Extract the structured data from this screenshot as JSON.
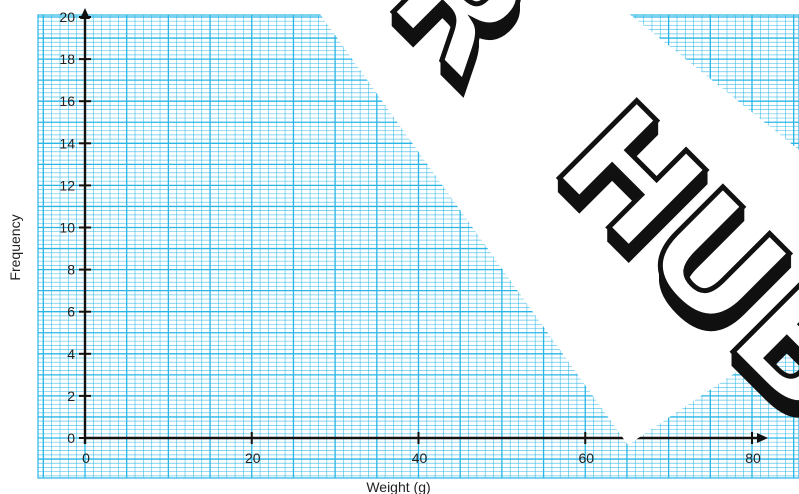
{
  "chart_data": {
    "type": "bar",
    "title": "",
    "xlabel": "Weight (g)",
    "ylabel": "Frequency",
    "xlim": [
      0,
      80
    ],
    "ylim": [
      0,
      20
    ],
    "x_ticks": [
      "0",
      "20",
      "40",
      "60",
      "80"
    ],
    "y_ticks": [
      "0",
      "2",
      "4",
      "6",
      "8",
      "10",
      "12",
      "14",
      "16",
      "18",
      "20"
    ],
    "grid": true,
    "grid_color": "#29b6e6",
    "series": []
  },
  "watermark": {
    "text": "R HUB",
    "colors": {
      "face": "#ffffff",
      "outline": "#111111",
      "shadow": "#1a1a1a"
    }
  }
}
